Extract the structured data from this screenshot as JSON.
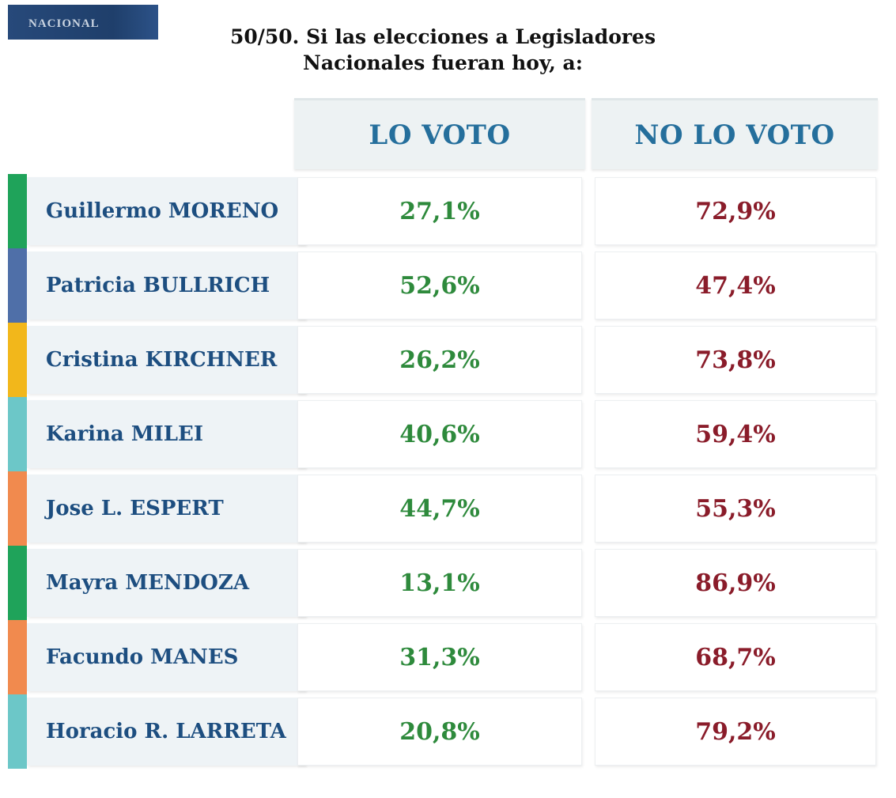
{
  "badge": "NACIONAL",
  "title_line1": "50/50. Si las elecciones a Legisladores",
  "title_line2": "Nacionales fueran hoy, a:",
  "chart_data": {
    "type": "table",
    "title": "50/50. Si las elecciones a Legisladores Nacionales fueran hoy, a:",
    "columns": [
      "LO VOTO",
      "NO LO VOTO"
    ],
    "colors": {
      "lo": "#2e8a3c",
      "no": "#8a1c2a",
      "header": "#256f9c"
    },
    "rows": [
      {
        "name": "Guillermo MORENO",
        "lo": "27,1%",
        "no": "72,9%",
        "stripe": "#1fa35a"
      },
      {
        "name": "Patricia BULLRICH",
        "lo": "52,6%",
        "no": "47,4%",
        "stripe": "#4f6fa8"
      },
      {
        "name": "Cristina KIRCHNER",
        "lo": "26,2%",
        "no": "73,8%",
        "stripe": "#f2b71b"
      },
      {
        "name": "Karina MILEI",
        "lo": "40,6%",
        "no": "59,4%",
        "stripe": "#6cc7c8"
      },
      {
        "name": "Jose L. ESPERT",
        "lo": "44,7%",
        "no": "55,3%",
        "stripe": "#f18a4e"
      },
      {
        "name": "Mayra MENDOZA",
        "lo": "13,1%",
        "no": "86,9%",
        "stripe": "#1fa35a"
      },
      {
        "name": "Facundo MANES",
        "lo": "31,3%",
        "no": "68,7%",
        "stripe": "#f18a4e"
      },
      {
        "name": "Horacio R. LARRETA",
        "lo": "20,8%",
        "no": "79,2%",
        "stripe": "#6cc7c8"
      }
    ]
  }
}
